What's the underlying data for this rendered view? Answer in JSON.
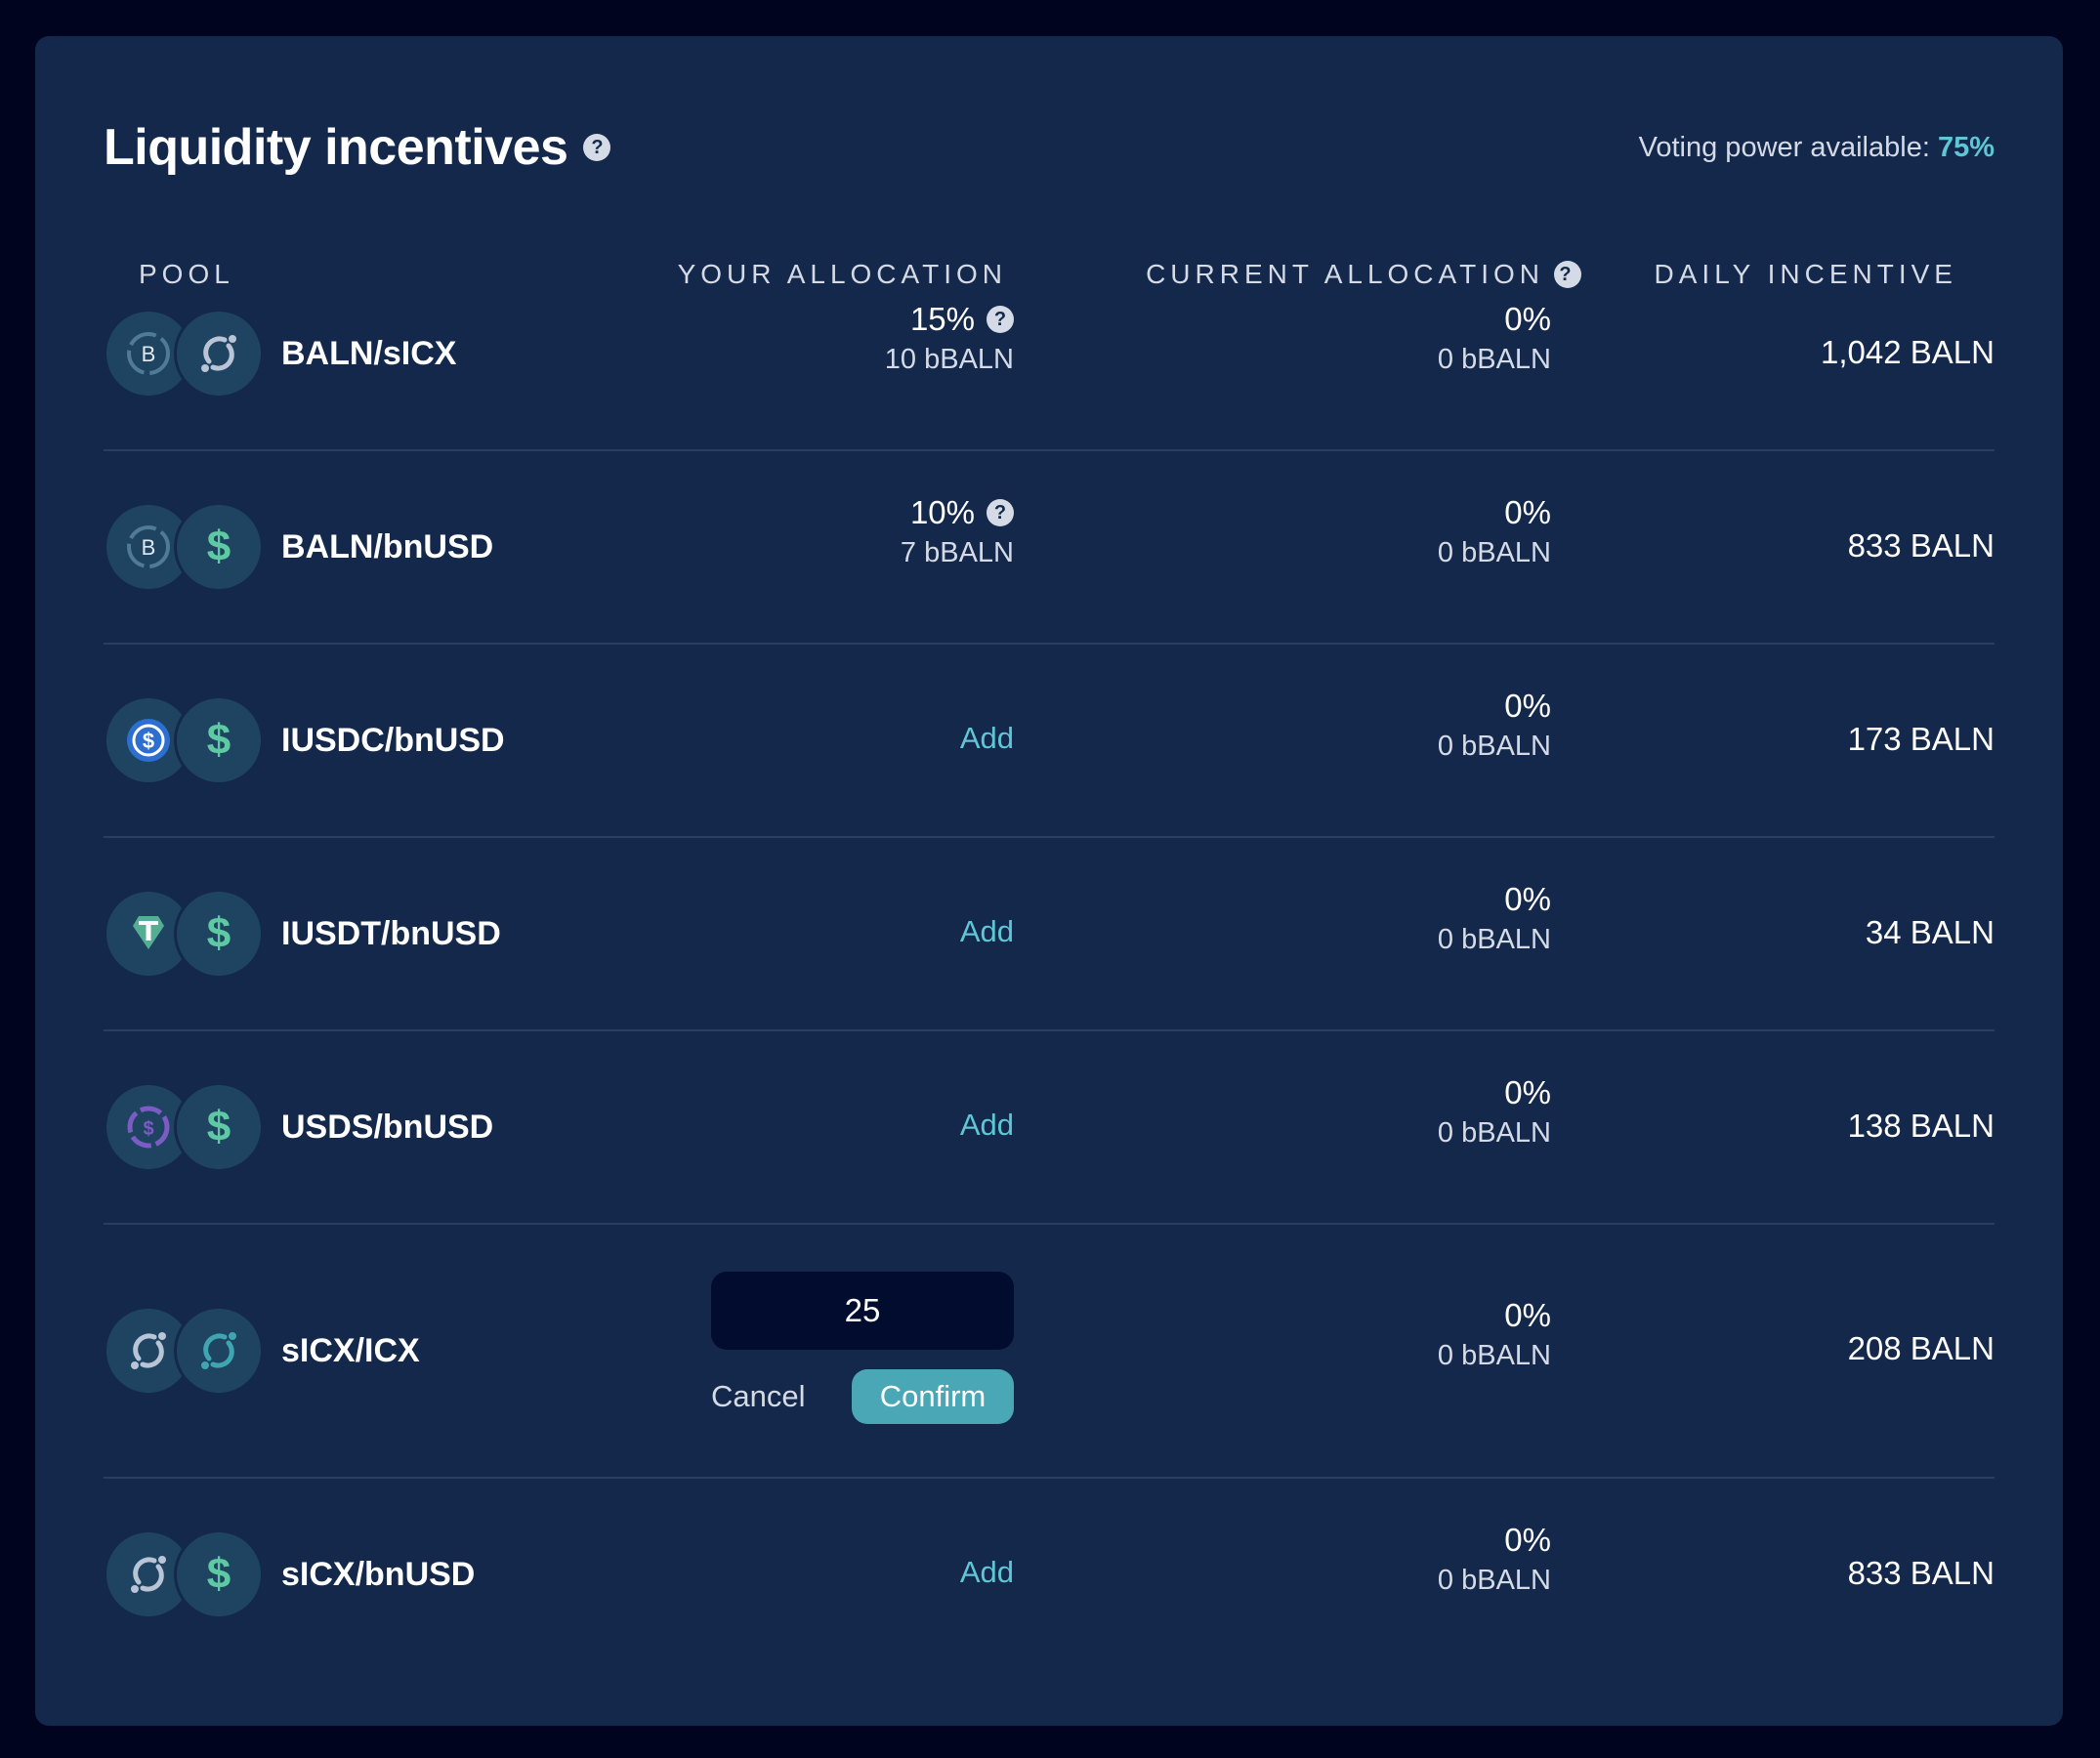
{
  "header": {
    "title": "Liquidity incentives",
    "voting_label": "Voting power available:",
    "voting_value": "75%"
  },
  "columns": {
    "pool": "POOL",
    "your_allocation": "YOUR ALLOCATION",
    "current_allocation": "CURRENT ALLOCATION",
    "daily_incentive": "DAILY INCENTIVE"
  },
  "rows": [
    {
      "pool": "BALN/sICX",
      "tokens": [
        "baln-icon",
        "icx-icon"
      ],
      "your_pct": "15%",
      "your_bbaln": "10 bBALN",
      "current_pct": "0%",
      "current_bbaln": "0 bBALN",
      "daily": "1,042 BALN"
    },
    {
      "pool": "BALN/bnUSD",
      "tokens": [
        "baln-icon",
        "bnusd-icon"
      ],
      "your_pct": "10%",
      "your_bbaln": "7 bBALN",
      "current_pct": "0%",
      "current_bbaln": "0 bBALN",
      "daily": "833 BALN"
    },
    {
      "pool": "IUSDC/bnUSD",
      "tokens": [
        "usdc-icon",
        "bnusd-icon"
      ],
      "add_label": "Add",
      "current_pct": "0%",
      "current_bbaln": "0 bBALN",
      "daily": "173 BALN"
    },
    {
      "pool": "IUSDT/bnUSD",
      "tokens": [
        "usdt-icon",
        "bnusd-icon"
      ],
      "add_label": "Add",
      "current_pct": "0%",
      "current_bbaln": "0 bBALN",
      "daily": "34 BALN"
    },
    {
      "pool": "USDS/bnUSD",
      "tokens": [
        "usds-icon",
        "bnusd-icon"
      ],
      "add_label": "Add",
      "current_pct": "0%",
      "current_bbaln": "0 bBALN",
      "daily": "138 BALN"
    },
    {
      "pool": "sICX/ICX",
      "tokens": [
        "sicx-icon",
        "icx-icon"
      ],
      "input_value": "25",
      "cancel_label": "Cancel",
      "confirm_label": "Confirm",
      "current_pct": "0%",
      "current_bbaln": "0 bBALN",
      "daily": "208 BALN"
    },
    {
      "pool": "sICX/bnUSD",
      "tokens": [
        "sicx-icon",
        "bnusd-icon"
      ],
      "add_label": "Add",
      "current_pct": "0%",
      "current_bbaln": "0 bBALN",
      "daily": "833 BALN"
    }
  ],
  "colors": {
    "page_bg": "#01041f",
    "panel_bg": "#14284b",
    "accent": "#5ec6d4",
    "confirm_bg": "#4aa7b6",
    "input_bg": "#020c2e"
  }
}
